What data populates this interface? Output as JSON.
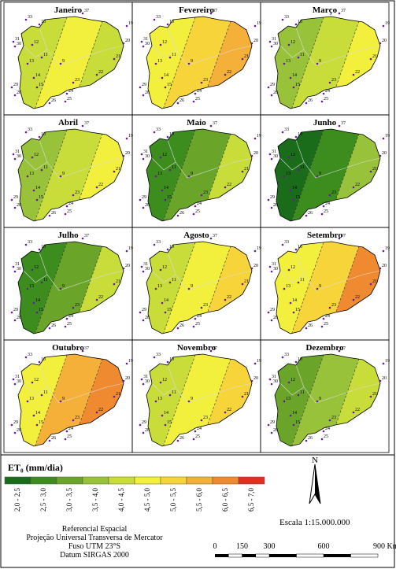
{
  "panels": [
    {
      "title": "Janeiro",
      "colors": [
        "#c8dc3a",
        "#f2f03c",
        "#c8dc3a"
      ]
    },
    {
      "title": "Fevereiro",
      "colors": [
        "#f2f03c",
        "#f7d43a",
        "#f5b03a"
      ]
    },
    {
      "title": "Março",
      "colors": [
        "#98c23a",
        "#c8dc3a",
        "#f2f03c"
      ]
    },
    {
      "title": "Abril",
      "colors": [
        "#98c23a",
        "#c8dc3a",
        "#f2f03c"
      ]
    },
    {
      "title": "Maio",
      "colors": [
        "#3d8c1e",
        "#6aa52a",
        "#c8dc3a"
      ]
    },
    {
      "title": "Junho",
      "colors": [
        "#1a6b1a",
        "#3d8c1e",
        "#98c23a"
      ]
    },
    {
      "title": "Julho",
      "colors": [
        "#3d8c1e",
        "#6aa52a",
        "#c8dc3a"
      ]
    },
    {
      "title": "Agosto",
      "colors": [
        "#c8dc3a",
        "#f2f03c",
        "#f7d43a"
      ]
    },
    {
      "title": "Setembro",
      "colors": [
        "#f2f03c",
        "#f7d43a",
        "#f08a30"
      ]
    },
    {
      "title": "Outubro",
      "colors": [
        "#f2f03c",
        "#f5b03a",
        "#f08a30"
      ]
    },
    {
      "title": "Novembro",
      "colors": [
        "#c8dc3a",
        "#f2f03c",
        "#f7d43a"
      ]
    },
    {
      "title": "Dezembro",
      "colors": [
        "#6aa52a",
        "#98c23a",
        "#c8dc3a"
      ]
    }
  ],
  "stations": [
    "33",
    "10",
    "37",
    "19",
    "31",
    "30",
    "12",
    "20",
    "11",
    "13",
    "9",
    "14",
    "15",
    "29",
    "28",
    "21",
    "22",
    "23",
    "24",
    "25",
    "26"
  ],
  "legend": {
    "title": "ET₀ (mm/dia)",
    "classes": [
      {
        "label": "2,0 - 2,5",
        "color": "#1a6b1a"
      },
      {
        "label": "2,5 - 3,0",
        "color": "#3d8c1e"
      },
      {
        "label": "3,0 - 3,5",
        "color": "#6aa52a"
      },
      {
        "label": "3,5 - 4,0",
        "color": "#98c23a"
      },
      {
        "label": "4,0 - 4,5",
        "color": "#c8dc3a"
      },
      {
        "label": "4,5 - 5,0",
        "color": "#f2f03c"
      },
      {
        "label": "5,0 - 5,5",
        "color": "#f7d43a"
      },
      {
        "label": "5,5 - 6,0",
        "color": "#f5b03a"
      },
      {
        "label": "6,0 - 6,5",
        "color": "#f08a30"
      },
      {
        "label": "6,5 - 7,0",
        "color": "#e03020"
      }
    ]
  },
  "reference": [
    "Referencial Espacial",
    "Projeção Universal Transversa de Mercator",
    "Fuso UTM 23°S",
    "Datum SIRGAS 2000"
  ],
  "north": "N",
  "scale_text": "Escala 1:15.000.000",
  "scale_bar": {
    "ticks": [
      {
        "value": 0,
        "label": "0"
      },
      {
        "value": 150,
        "label": "150"
      },
      {
        "value": 300,
        "label": "300"
      },
      {
        "value": 600,
        "label": "600"
      },
      {
        "value": 900,
        "label": "900 Km"
      }
    ]
  }
}
